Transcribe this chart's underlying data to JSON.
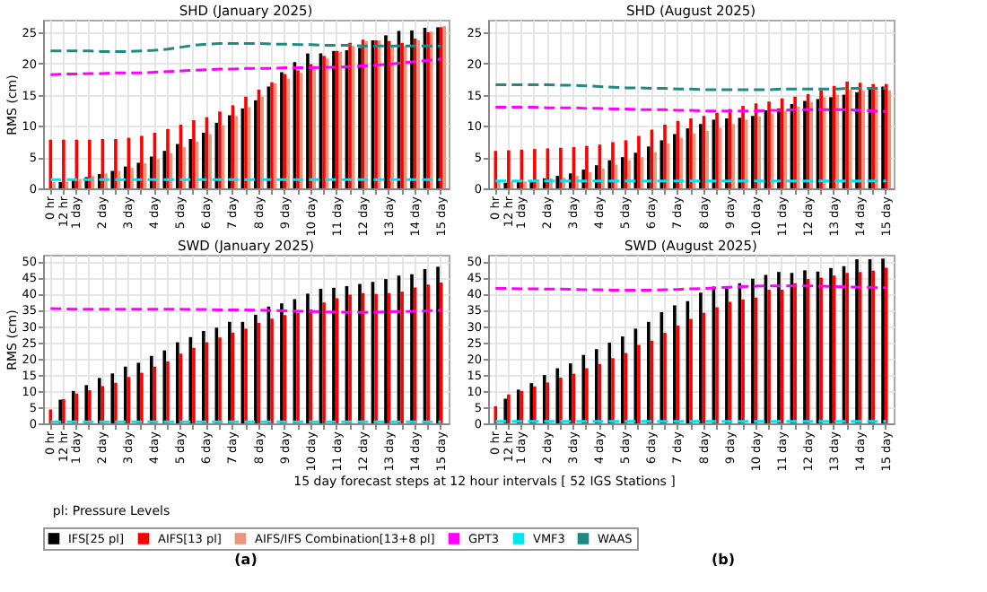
{
  "chart_data": [
    {
      "type": "bar",
      "title": "SHD (January 2025)",
      "ylabel": "RMS (cm)",
      "categories": [
        "0 hr",
        "12 hr",
        "1 day",
        null,
        "2 day",
        null,
        "3 day",
        null,
        "4 day",
        null,
        "5 day",
        null,
        "6 day",
        null,
        "7 day",
        null,
        "8 day",
        null,
        "9 day",
        null,
        "10 day",
        null,
        "11 day",
        null,
        "12 day",
        null,
        "13 day",
        null,
        "14 day",
        null,
        "15 day"
      ],
      "ylim": [
        0,
        27
      ],
      "yticks": [
        0,
        5,
        10,
        15,
        20,
        25
      ],
      "grid": true,
      "legend": "bottom",
      "annotations": [
        "pl: Pressure Levels"
      ],
      "series": [
        {
          "name": "IFS[25 pl]",
          "color": "#000000",
          "values": [
            null,
            1.0,
            1.4,
            1.8,
            2.3,
            2.8,
            3.5,
            4.1,
            5.1,
            6.0,
            7.1,
            7.9,
            8.9,
            10.5,
            11.7,
            12.8,
            14.1,
            16.3,
            18.6,
            20.2,
            21.6,
            21.6,
            22.0,
            22.1,
            22.5,
            23.7,
            24.5,
            25.2,
            25.3,
            25.7,
            25.8
          ]
        },
        {
          "name": "AIFS[13 pl]",
          "color": "#ff0000",
          "values": [
            7.8,
            7.8,
            7.8,
            7.8,
            7.9,
            7.9,
            8.1,
            8.4,
            8.9,
            9.5,
            10.2,
            10.9,
            11.4,
            12.3,
            13.3,
            14.7,
            15.8,
            17.0,
            18.3,
            18.9,
            19.9,
            21.2,
            22.0,
            23.3,
            23.8,
            23.7,
            23.6,
            23.3,
            24.0,
            25.0,
            25.8
          ]
        },
        {
          "name": "AIFS/IFS Combination[13+8 pl]",
          "color": "#e9967a",
          "values": [
            1.0,
            1.1,
            1.5,
            2.0,
            2.4,
            2.8,
            3.3,
            4.0,
            4.7,
            5.6,
            6.6,
            7.5,
            8.7,
            10.1,
            11.6,
            13.0,
            14.7,
            16.8,
            17.6,
            18.5,
            19.6,
            20.8,
            21.9,
            22.8,
            23.6,
            23.7,
            22.9,
            22.8,
            23.7,
            25.1,
            26.0
          ]
        },
        {
          "name": "GPT3",
          "color": "#ff00ff",
          "type": "line",
          "line_style": "dashed",
          "values": [
            18.2,
            18.3,
            18.3,
            18.4,
            18.4,
            18.5,
            18.5,
            18.5,
            18.6,
            18.7,
            18.8,
            18.9,
            19.0,
            19.1,
            19.1,
            19.2,
            19.2,
            19.2,
            19.3,
            19.3,
            19.3,
            19.4,
            19.4,
            19.5,
            19.6,
            19.7,
            19.9,
            20.1,
            20.3,
            20.5,
            20.7
          ]
        },
        {
          "name": "VMF3",
          "color": "#00e5ee",
          "type": "line",
          "line_style": "dashed",
          "values": [
            1.4,
            1.4,
            1.4,
            1.4,
            1.4,
            1.4,
            1.4,
            1.4,
            1.4,
            1.4,
            1.4,
            1.4,
            1.4,
            1.4,
            1.4,
            1.4,
            1.4,
            1.4,
            1.4,
            1.4,
            1.4,
            1.4,
            1.4,
            1.4,
            1.4,
            1.4,
            1.4,
            1.4,
            1.4,
            1.4,
            1.4
          ]
        },
        {
          "name": "WAAS",
          "color": "#1f8a80",
          "type": "line",
          "line_style": "dashed",
          "values": [
            22.0,
            22.0,
            22.0,
            22.0,
            21.9,
            21.9,
            21.9,
            22.0,
            22.1,
            22.3,
            22.6,
            22.9,
            23.1,
            23.2,
            23.2,
            23.2,
            23.2,
            23.1,
            23.1,
            23.0,
            23.0,
            22.9,
            22.9,
            22.9,
            22.8,
            22.8,
            22.8,
            22.8,
            22.8,
            22.8,
            22.8
          ]
        }
      ]
    },
    {
      "type": "bar",
      "title": "SHD (August 2025)",
      "categories": [
        "0 hr",
        "12 hr",
        "1 day",
        null,
        "2 day",
        null,
        "3 day",
        null,
        "4 day",
        null,
        "5 day",
        null,
        "6 day",
        null,
        "7 day",
        null,
        "8 day",
        null,
        "9 day",
        null,
        "10 day",
        null,
        "11 day",
        null,
        "12 day",
        null,
        "13 day",
        null,
        "14 day",
        null,
        "15 day"
      ],
      "ylim": [
        0,
        27
      ],
      "yticks": [
        0,
        5,
        10,
        15,
        20,
        25
      ],
      "grid": true,
      "series": [
        {
          "name": "IFS[25 pl]",
          "color": "#000000",
          "values": [
            null,
            0.9,
            1.1,
            1.3,
            1.6,
            2.0,
            2.4,
            3.0,
            3.7,
            4.5,
            5.0,
            5.7,
            6.7,
            7.7,
            8.7,
            9.6,
            10.3,
            11.0,
            11.2,
            11.3,
            11.6,
            12.5,
            12.8,
            13.5,
            14.0,
            14.3,
            14.6,
            15.0,
            15.4,
            15.9,
            16.3
          ]
        },
        {
          "name": "AIFS[13 pl]",
          "color": "#ff0000",
          "values": [
            6.0,
            6.1,
            6.2,
            6.3,
            6.4,
            6.5,
            6.6,
            6.8,
            7.0,
            7.4,
            7.7,
            8.4,
            9.4,
            10.2,
            10.8,
            11.2,
            11.6,
            12.1,
            12.7,
            13.2,
            13.6,
            13.9,
            14.4,
            14.7,
            15.1,
            15.7,
            16.4,
            17.1,
            16.9,
            16.7,
            16.7
          ]
        },
        {
          "name": "AIFS/IFS Combination[13+8 pl]",
          "color": "#e9967a",
          "values": [
            1.0,
            1.1,
            1.1,
            1.4,
            1.6,
            1.7,
            2.0,
            2.6,
            3.2,
            3.8,
            4.5,
            5.0,
            5.8,
            7.2,
            8.1,
            8.8,
            9.2,
            9.7,
            10.3,
            11.0,
            11.5,
            12.0,
            12.4,
            13.1,
            13.8,
            14.6,
            15.0,
            15.8,
            15.7,
            15.9,
            15.7
          ]
        },
        {
          "name": "GPT3",
          "color": "#ff00ff",
          "type": "line",
          "line_style": "dashed",
          "values": [
            13.0,
            13.0,
            13.0,
            13.0,
            12.9,
            12.9,
            12.9,
            12.8,
            12.8,
            12.7,
            12.7,
            12.6,
            12.6,
            12.6,
            12.5,
            12.5,
            12.4,
            12.4,
            12.4,
            12.4,
            12.4,
            12.5,
            12.5,
            12.6,
            12.6,
            12.6,
            12.6,
            12.6,
            12.5,
            12.4,
            12.3
          ]
        },
        {
          "name": "VMF3",
          "color": "#00e5ee",
          "type": "line",
          "line_style": "dashed",
          "values": [
            1.2,
            1.2,
            1.2,
            1.2,
            1.2,
            1.2,
            1.2,
            1.2,
            1.2,
            1.2,
            1.2,
            1.2,
            1.2,
            1.2,
            1.2,
            1.2,
            1.2,
            1.2,
            1.2,
            1.2,
            1.2,
            1.2,
            1.2,
            1.2,
            1.2,
            1.2,
            1.2,
            1.2,
            1.2,
            1.2,
            1.2
          ]
        },
        {
          "name": "WAAS",
          "color": "#1f8a80",
          "type": "line",
          "line_style": "dashed",
          "values": [
            16.6,
            16.6,
            16.6,
            16.6,
            16.6,
            16.5,
            16.5,
            16.4,
            16.3,
            16.2,
            16.1,
            16.1,
            16.0,
            16.0,
            15.9,
            15.9,
            15.8,
            15.8,
            15.8,
            15.8,
            15.8,
            15.8,
            15.9,
            15.9,
            15.9,
            15.9,
            15.9,
            16.0,
            16.0,
            16.0,
            16.0
          ]
        }
      ]
    },
    {
      "type": "bar",
      "title": "SWD (January 2025)",
      "ylabel": "RMS (cm)",
      "xlabel": "15 day forecast steps at 12 hour intervals [ 52 IGS Stations ]",
      "annotations": [
        "(a)"
      ],
      "categories": [
        "0 hr",
        "12 hr",
        "1 day",
        null,
        "2 day",
        null,
        "3 day",
        null,
        "4 day",
        null,
        "5 day",
        null,
        "6 day",
        null,
        "7 day",
        null,
        "8 day",
        null,
        "9 day",
        null,
        "10 day",
        null,
        "11 day",
        null,
        "12 day",
        null,
        "13 day",
        null,
        "14 day",
        null,
        "15 day"
      ],
      "ylim": [
        0,
        52
      ],
      "yticks": [
        0,
        5,
        10,
        15,
        20,
        25,
        30,
        35,
        40,
        45,
        50
      ],
      "grid": true,
      "series": [
        {
          "name": "IFS[25 pl]",
          "color": "#000000",
          "values": [
            null,
            7.3,
            10.0,
            11.8,
            14.0,
            15.4,
            17.5,
            18.7,
            20.8,
            22.5,
            25.0,
            26.6,
            28.5,
            29.5,
            31.3,
            31.3,
            33.5,
            36.0,
            37.0,
            38.3,
            40.0,
            41.5,
            41.8,
            42.3,
            43.0,
            43.6,
            44.5,
            45.6,
            46.0,
            47.6,
            48.3
          ]
        },
        {
          "name": "AIFS[13 pl]",
          "color": "#ff0000",
          "values": [
            4.3,
            7.5,
            9.2,
            10.2,
            11.5,
            12.5,
            14.3,
            15.6,
            17.5,
            19.1,
            21.5,
            23.3,
            25.0,
            26.5,
            28.0,
            29.2,
            31.0,
            32.3,
            33.4,
            34.1,
            35.1,
            37.3,
            38.6,
            39.7,
            40.2,
            39.9,
            40.2,
            40.6,
            41.9,
            42.8,
            43.4
          ]
        },
        {
          "name": "GPT3",
          "color": "#ff00ff",
          "type": "line",
          "line_style": "dashed",
          "values": [
            35.4,
            35.3,
            35.2,
            35.2,
            35.2,
            35.2,
            35.2,
            35.2,
            35.2,
            35.2,
            35.2,
            35.1,
            35.1,
            35.0,
            35.0,
            35.0,
            34.9,
            34.8,
            34.7,
            34.6,
            34.5,
            34.4,
            34.3,
            34.2,
            34.2,
            34.3,
            34.4,
            34.5,
            34.6,
            34.7,
            34.9
          ]
        },
        {
          "name": "VMF3",
          "color": "#00e5ee",
          "type": "line",
          "line_style": "dashed",
          "values": [
            0.5,
            0.5,
            0.5,
            0.5,
            0.5,
            0.5,
            0.5,
            0.5,
            0.5,
            0.5,
            0.5,
            0.5,
            0.5,
            0.5,
            0.5,
            0.5,
            0.5,
            0.5,
            0.5,
            0.5,
            0.5,
            0.5,
            0.5,
            0.5,
            0.5,
            0.5,
            0.5,
            0.5,
            0.5,
            0.5,
            0.5
          ]
        }
      ]
    },
    {
      "type": "bar",
      "title": "SWD (August 2025)",
      "annotations": [
        "(b)"
      ],
      "categories": [
        "0 hr",
        "12 hr",
        "1 day",
        null,
        "2 day",
        null,
        "3 day",
        null,
        "4 day",
        null,
        "5 day",
        null,
        "6 day",
        null,
        "7 day",
        null,
        "8 day",
        null,
        "9 day",
        null,
        "10 day",
        null,
        "11 day",
        null,
        "12 day",
        null,
        "13 day",
        null,
        "14 day",
        null,
        "15 day"
      ],
      "ylim": [
        0,
        52
      ],
      "yticks": [
        0,
        5,
        10,
        15,
        20,
        25,
        30,
        35,
        40,
        45,
        50
      ],
      "grid": true,
      "series": [
        {
          "name": "IFS[25 pl]",
          "color": "#000000",
          "values": [
            null,
            7.6,
            10.4,
            12.4,
            14.9,
            17.0,
            18.5,
            21.1,
            22.9,
            24.9,
            26.8,
            29.2,
            31.3,
            34.3,
            36.4,
            37.7,
            40.3,
            42.2,
            41.7,
            43.2,
            44.6,
            45.8,
            46.7,
            46.4,
            47.2,
            46.8,
            47.9,
            48.5,
            50.6,
            50.6,
            50.8
          ]
        },
        {
          "name": "AIFS[13 pl]",
          "color": "#ff0000",
          "values": [
            5.3,
            8.9,
            10.0,
            11.4,
            12.6,
            14.1,
            15.3,
            17.0,
            18.3,
            20.1,
            21.7,
            24.2,
            25.5,
            27.9,
            30.2,
            32.2,
            34.1,
            35.8,
            37.5,
            38.2,
            38.8,
            41.2,
            41.2,
            43.2,
            44.5,
            44.9,
            45.6,
            46.4,
            46.7,
            47.1,
            48.0
          ]
        },
        {
          "name": "GPT3",
          "color": "#ff00ff",
          "type": "line",
          "line_style": "dashed",
          "values": [
            41.6,
            41.6,
            41.5,
            41.5,
            41.4,
            41.4,
            41.3,
            41.2,
            41.2,
            41.1,
            41.1,
            41.1,
            41.1,
            41.2,
            41.3,
            41.5,
            41.6,
            41.8,
            42.0,
            42.2,
            42.3,
            42.4,
            42.4,
            42.4,
            42.4,
            42.3,
            42.2,
            42.1,
            42.0,
            41.9,
            41.8
          ]
        },
        {
          "name": "VMF3",
          "color": "#00e5ee",
          "type": "line",
          "line_style": "dashed",
          "values": [
            0.6,
            0.6,
            0.6,
            0.6,
            0.6,
            0.6,
            0.6,
            0.6,
            0.6,
            0.6,
            0.6,
            0.6,
            0.6,
            0.6,
            0.6,
            0.6,
            0.6,
            0.6,
            0.6,
            0.6,
            0.6,
            0.6,
            0.6,
            0.6,
            0.6,
            0.6,
            0.6,
            0.6,
            0.6,
            0.6,
            0.6
          ]
        }
      ]
    }
  ]
}
